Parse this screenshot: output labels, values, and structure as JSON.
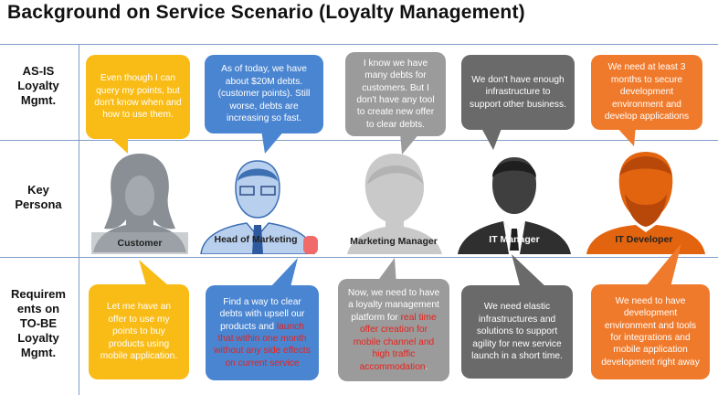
{
  "title": "Background on Service Scenario (Loyalty Management)",
  "rows": {
    "asis": "AS-IS\nLoyalty\nMgmt.",
    "persona": "Key\nPersona",
    "tobe": "Requirem\nents on\nTO-BE\nLoyalty\nMgmt."
  },
  "personas": [
    {
      "label": "Customer"
    },
    {
      "label": "Head of Marketing"
    },
    {
      "label": "Marketing Manager"
    },
    {
      "label": "IT Manager"
    },
    {
      "label": "IT Developer"
    }
  ],
  "asis": [
    {
      "text": "Even though I can query my points, but don't know when and how to use them."
    },
    {
      "text": "As of today, we have about $20M debts. (customer points). Still worse, debts are increasing so fast."
    },
    {
      "text": "I know we have many debts for customers. But I don't have any tool to create new offer to clear debts."
    },
    {
      "text": "We don't have enough infrastructure to support other business."
    },
    {
      "text": "We need at least 3 months to secure development environment and develop applications"
    }
  ],
  "tobe": {
    "customer": "Let me have an offer to use my points to buy products using mobile application.",
    "hom_a": "Find a way to clear debts with upsell our products and ",
    "hom_b": "launch that within one month without any side effects on current service",
    "mm_a": "Now, we need to have a loyalty management platform  for ",
    "mm_b": "real time offer creation for mobile channel and high traffic accommodation",
    "mm_c": ".",
    "itm": "We need elastic infrastructures and solutions to support agility for new service launch in a short time.",
    "dev": "We need to have development environment and tools for integrations and mobile application development right away"
  },
  "colors": {
    "orange": "#f07a2b",
    "yellow": "#f9bc16",
    "blue": "#4a85d1",
    "gray": "#9b9b9b",
    "dark": "#6a6a6a",
    "highlight": "#e8211c",
    "rule": "#7f9dc8"
  }
}
